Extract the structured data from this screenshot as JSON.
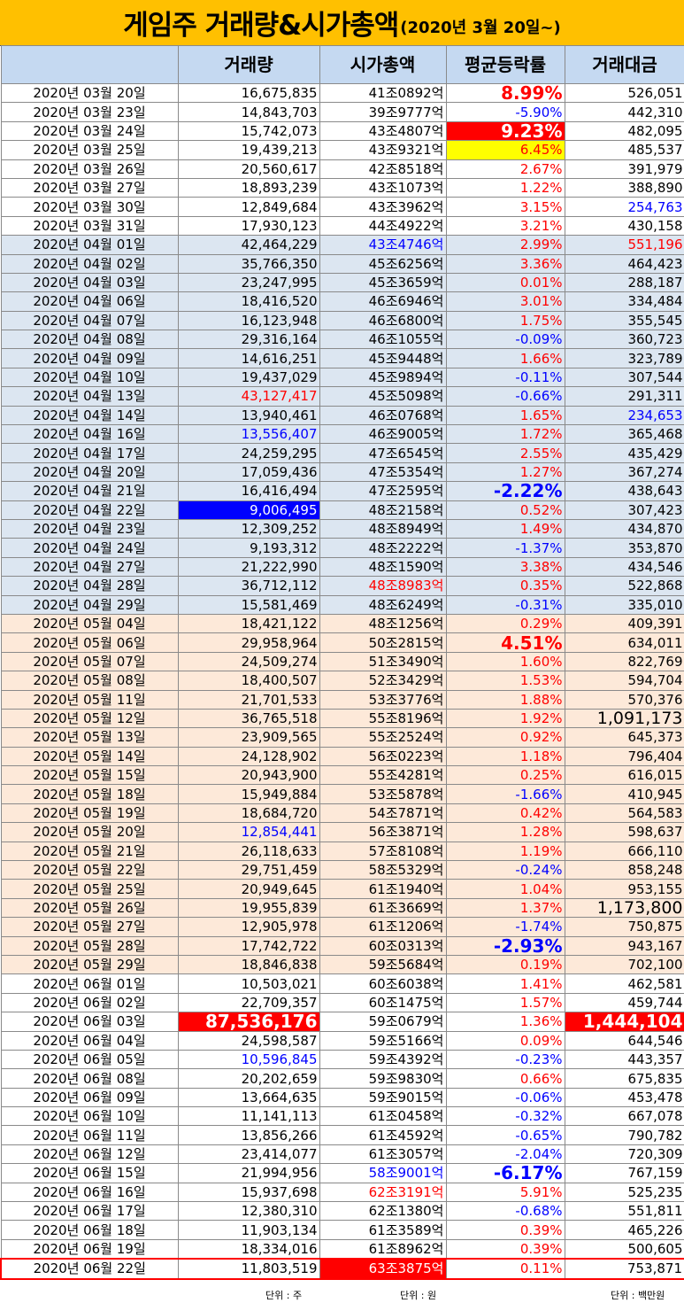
{
  "title": {
    "main": "게임주 거래량&시가총액",
    "sub": "(2020년 3월 20일~)"
  },
  "colors": {
    "title_bg": "#ffc000",
    "header_bg": "#c5d9f1",
    "march_bg": "#ffffff",
    "april_bg": "#dce6f1",
    "may_bg": "#fde9d9",
    "june_bg": "#ffffff",
    "highlight_red": "#ff0000",
    "highlight_blue": "#0000ff",
    "highlight_yellow": "#ffff00"
  },
  "headers": [
    "",
    "거래량",
    "시가총액",
    "평균등락률",
    "거래대금"
  ],
  "rows": [
    {
      "date": "2020년 03월 20일",
      "volume": "16,675,835",
      "market_cap": "41조0892억",
      "change": "8.99%",
      "amount": "526,051",
      "group": "white",
      "cs": [
        "",
        "",
        "",
        "pos big",
        ""
      ]
    },
    {
      "date": "2020년 03월 23일",
      "volume": "14,843,703",
      "market_cap": "39조9777억",
      "change": "-5.90%",
      "amount": "442,310",
      "group": "white",
      "cs": [
        "",
        "",
        "",
        "neg",
        ""
      ]
    },
    {
      "date": "2020년 03월 24일",
      "volume": "15,742,073",
      "market_cap": "43조4807억",
      "change": "9.23%",
      "amount": "482,095",
      "group": "white",
      "cs": [
        "",
        "",
        "",
        "bg-red big",
        ""
      ]
    },
    {
      "date": "2020년 03월 25일",
      "volume": "19,439,213",
      "market_cap": "43조9321억",
      "change": "6.45%",
      "amount": "485,537",
      "group": "white",
      "cs": [
        "",
        "",
        "",
        "pos bg-yellow",
        ""
      ]
    },
    {
      "date": "2020년 03월 26일",
      "volume": "20,560,617",
      "market_cap": "42조8518억",
      "change": "2.67%",
      "amount": "391,979",
      "group": "white",
      "cs": [
        "",
        "",
        "",
        "pos",
        ""
      ]
    },
    {
      "date": "2020년 03월 27일",
      "volume": "18,893,239",
      "market_cap": "43조1073억",
      "change": "1.22%",
      "amount": "388,890",
      "group": "white",
      "cs": [
        "",
        "",
        "",
        "pos",
        ""
      ]
    },
    {
      "date": "2020년 03월 30일",
      "volume": "12,849,684",
      "market_cap": "43조3962억",
      "change": "3.15%",
      "amount": "254,763",
      "group": "white",
      "cs": [
        "",
        "",
        "",
        "pos",
        "t-blue"
      ]
    },
    {
      "date": "2020년 03월 31일",
      "volume": "17,930,123",
      "market_cap": "44조4922억",
      "change": "3.21%",
      "amount": "430,158",
      "group": "white",
      "cs": [
        "",
        "",
        "",
        "pos",
        ""
      ]
    },
    {
      "date": "2020년 04월 01일",
      "volume": "42,464,229",
      "market_cap": "43조4746억",
      "change": "2.99%",
      "amount": "551,196",
      "group": "blue",
      "cs": [
        "",
        "",
        "t-blue",
        "pos",
        "t-red"
      ]
    },
    {
      "date": "2020년 04월 02일",
      "volume": "35,766,350",
      "market_cap": "45조6256억",
      "change": "3.36%",
      "amount": "464,423",
      "group": "blue",
      "cs": [
        "",
        "",
        "",
        "pos",
        ""
      ]
    },
    {
      "date": "2020년 04월 03일",
      "volume": "23,247,995",
      "market_cap": "45조3659억",
      "change": "0.01%",
      "amount": "288,187",
      "group": "blue",
      "cs": [
        "",
        "",
        "",
        "pos",
        ""
      ]
    },
    {
      "date": "2020년 04월 06일",
      "volume": "18,416,520",
      "market_cap": "46조6946억",
      "change": "3.01%",
      "amount": "334,484",
      "group": "blue",
      "cs": [
        "",
        "",
        "",
        "pos",
        ""
      ]
    },
    {
      "date": "2020년 04월 07일",
      "volume": "16,123,948",
      "market_cap": "46조6800억",
      "change": "1.75%",
      "amount": "355,545",
      "group": "blue",
      "cs": [
        "",
        "",
        "",
        "pos",
        ""
      ]
    },
    {
      "date": "2020년 04월 08일",
      "volume": "29,316,164",
      "market_cap": "46조1055억",
      "change": "-0.09%",
      "amount": "360,723",
      "group": "blue",
      "cs": [
        "",
        "",
        "",
        "neg",
        ""
      ]
    },
    {
      "date": "2020년 04월 09일",
      "volume": "14,616,251",
      "market_cap": "45조9448억",
      "change": "1.66%",
      "amount": "323,789",
      "group": "blue",
      "cs": [
        "",
        "",
        "",
        "pos",
        ""
      ]
    },
    {
      "date": "2020년 04월 10일",
      "volume": "19,437,029",
      "market_cap": "45조9894억",
      "change": "-0.11%",
      "amount": "307,544",
      "group": "blue",
      "cs": [
        "",
        "",
        "",
        "neg",
        ""
      ]
    },
    {
      "date": "2020년 04월 13일",
      "volume": "43,127,417",
      "market_cap": "45조5098억",
      "change": "-0.66%",
      "amount": "291,311",
      "group": "blue",
      "cs": [
        "",
        "t-red",
        "",
        "neg",
        ""
      ]
    },
    {
      "date": "2020년 04월 14일",
      "volume": "13,940,461",
      "market_cap": "46조0768억",
      "change": "1.65%",
      "amount": "234,653",
      "group": "blue",
      "cs": [
        "",
        "",
        "",
        "pos",
        "t-blue"
      ]
    },
    {
      "date": "2020년 04월 16일",
      "volume": "13,556,407",
      "market_cap": "46조9005억",
      "change": "1.72%",
      "amount": "365,468",
      "group": "blue",
      "cs": [
        "",
        "t-blue",
        "",
        "pos",
        ""
      ]
    },
    {
      "date": "2020년 04월 17일",
      "volume": "24,259,295",
      "market_cap": "47조6545억",
      "change": "2.55%",
      "amount": "435,429",
      "group": "blue",
      "cs": [
        "",
        "",
        "",
        "pos",
        ""
      ]
    },
    {
      "date": "2020년 04월 20일",
      "volume": "17,059,436",
      "market_cap": "47조5354억",
      "change": "1.27%",
      "amount": "367,274",
      "group": "blue",
      "cs": [
        "",
        "",
        "",
        "pos",
        ""
      ]
    },
    {
      "date": "2020년 04월 21일",
      "volume": "16,416,494",
      "market_cap": "47조2595억",
      "change": "-2.22%",
      "amount": "438,643",
      "group": "blue",
      "cs": [
        "",
        "",
        "",
        "neg big",
        ""
      ]
    },
    {
      "date": "2020년 04월 22일",
      "volume": "9,006,495",
      "market_cap": "48조2158억",
      "change": "0.52%",
      "amount": "307,423",
      "group": "blue",
      "cs": [
        "",
        "bg-blue",
        "",
        "pos",
        ""
      ]
    },
    {
      "date": "2020년 04월 23일",
      "volume": "12,309,252",
      "market_cap": "48조8949억",
      "change": "1.49%",
      "amount": "434,870",
      "group": "blue",
      "cs": [
        "",
        "",
        "",
        "pos",
        ""
      ]
    },
    {
      "date": "2020년 04월 24일",
      "volume": "9,193,312",
      "market_cap": "48조2222억",
      "change": "-1.37%",
      "amount": "353,870",
      "group": "blue",
      "cs": [
        "",
        "",
        "",
        "neg",
        ""
      ]
    },
    {
      "date": "2020년 04월 27일",
      "volume": "21,222,990",
      "market_cap": "48조1590억",
      "change": "3.38%",
      "amount": "434,546",
      "group": "blue",
      "cs": [
        "",
        "",
        "",
        "pos",
        ""
      ]
    },
    {
      "date": "2020년 04월 28일",
      "volume": "36,712,112",
      "market_cap": "48조8983억",
      "change": "0.35%",
      "amount": "522,868",
      "group": "blue",
      "cs": [
        "",
        "",
        "t-red",
        "pos",
        ""
      ]
    },
    {
      "date": "2020년 04월 29일",
      "volume": "15,581,469",
      "market_cap": "48조6249억",
      "change": "-0.31%",
      "amount": "335,010",
      "group": "blue",
      "cs": [
        "",
        "",
        "",
        "neg",
        ""
      ]
    },
    {
      "date": "2020년 05월 04일",
      "volume": "18,421,122",
      "market_cap": "48조1256억",
      "change": "0.29%",
      "amount": "409,391",
      "group": "peach",
      "cs": [
        "",
        "",
        "",
        "pos",
        ""
      ]
    },
    {
      "date": "2020년 05월 06일",
      "volume": "29,958,964",
      "market_cap": "50조2815억",
      "change": "4.51%",
      "amount": "634,011",
      "group": "peach",
      "cs": [
        "",
        "",
        "",
        "pos big",
        ""
      ]
    },
    {
      "date": "2020년 05월 07일",
      "volume": "24,509,274",
      "market_cap": "51조3490억",
      "change": "1.60%",
      "amount": "822,769",
      "group": "peach",
      "cs": [
        "",
        "",
        "",
        "pos",
        ""
      ]
    },
    {
      "date": "2020년 05월 08일",
      "volume": "18,400,507",
      "market_cap": "52조3429억",
      "change": "1.53%",
      "amount": "594,704",
      "group": "peach",
      "cs": [
        "",
        "",
        "",
        "pos",
        ""
      ]
    },
    {
      "date": "2020년 05월 11일",
      "volume": "21,701,533",
      "market_cap": "53조3776억",
      "change": "1.88%",
      "amount": "570,376",
      "group": "peach",
      "cs": [
        "",
        "",
        "",
        "pos",
        ""
      ]
    },
    {
      "date": "2020년 05월 12일",
      "volume": "36,765,518",
      "market_cap": "55조8196억",
      "change": "1.92%",
      "amount": "1,091,173",
      "group": "peach",
      "cs": [
        "",
        "",
        "",
        "pos",
        "big-black"
      ]
    },
    {
      "date": "2020년 05월 13일",
      "volume": "23,909,565",
      "market_cap": "55조2524억",
      "change": "0.92%",
      "amount": "645,373",
      "group": "peach",
      "cs": [
        "",
        "",
        "",
        "pos",
        ""
      ]
    },
    {
      "date": "2020년 05월 14일",
      "volume": "24,128,902",
      "market_cap": "56조0223억",
      "change": "1.18%",
      "amount": "796,404",
      "group": "peach",
      "cs": [
        "",
        "",
        "",
        "pos",
        ""
      ]
    },
    {
      "date": "2020년 05월 15일",
      "volume": "20,943,900",
      "market_cap": "55조4281억",
      "change": "0.25%",
      "amount": "616,015",
      "group": "peach",
      "cs": [
        "",
        "",
        "",
        "pos",
        ""
      ]
    },
    {
      "date": "2020년 05월 18일",
      "volume": "15,949,884",
      "market_cap": "53조5878억",
      "change": "-1.66%",
      "amount": "410,945",
      "group": "peach",
      "cs": [
        "",
        "",
        "",
        "neg",
        ""
      ]
    },
    {
      "date": "2020년 05월 19일",
      "volume": "18,684,720",
      "market_cap": "54조7871억",
      "change": "0.42%",
      "amount": "564,583",
      "group": "peach",
      "cs": [
        "",
        "",
        "",
        "pos",
        ""
      ]
    },
    {
      "date": "2020년 05월 20일",
      "volume": "12,854,441",
      "market_cap": "56조3871억",
      "change": "1.28%",
      "amount": "598,637",
      "group": "peach",
      "cs": [
        "",
        "t-blue",
        "",
        "pos",
        ""
      ]
    },
    {
      "date": "2020년 05월 21일",
      "volume": "26,118,633",
      "market_cap": "57조8108억",
      "change": "1.19%",
      "amount": "666,110",
      "group": "peach",
      "cs": [
        "",
        "",
        "",
        "pos",
        ""
      ]
    },
    {
      "date": "2020년 05월 22일",
      "volume": "29,751,459",
      "market_cap": "58조5329억",
      "change": "-0.24%",
      "amount": "858,248",
      "group": "peach",
      "cs": [
        "",
        "",
        "",
        "neg",
        ""
      ]
    },
    {
      "date": "2020년 05월 25일",
      "volume": "20,949,645",
      "market_cap": "61조1940억",
      "change": "1.04%",
      "amount": "953,155",
      "group": "peach",
      "cs": [
        "",
        "",
        "",
        "pos",
        ""
      ]
    },
    {
      "date": "2020년 05월 26일",
      "volume": "19,955,839",
      "market_cap": "61조3669억",
      "change": "1.37%",
      "amount": "1,173,800",
      "group": "peach",
      "cs": [
        "",
        "",
        "",
        "pos",
        "big-black"
      ]
    },
    {
      "date": "2020년 05월 27일",
      "volume": "12,905,978",
      "market_cap": "61조1206억",
      "change": "-1.74%",
      "amount": "750,875",
      "group": "peach",
      "cs": [
        "",
        "",
        "",
        "neg",
        ""
      ]
    },
    {
      "date": "2020년 05월 28일",
      "volume": "17,742,722",
      "market_cap": "60조0313억",
      "change": "-2.93%",
      "amount": "943,167",
      "group": "peach",
      "cs": [
        "",
        "",
        "",
        "neg big",
        ""
      ]
    },
    {
      "date": "2020년 05월 29일",
      "volume": "18,846,838",
      "market_cap": "59조5684억",
      "change": "0.19%",
      "amount": "702,100",
      "group": "peach",
      "cs": [
        "",
        "",
        "",
        "pos",
        ""
      ]
    },
    {
      "date": "2020년 06월 01일",
      "volume": "10,503,021",
      "market_cap": "60조6038억",
      "change": "1.41%",
      "amount": "462,581",
      "group": "white",
      "cs": [
        "",
        "",
        "",
        "pos",
        ""
      ]
    },
    {
      "date": "2020년 06월 02일",
      "volume": "22,709,357",
      "market_cap": "60조1475억",
      "change": "1.57%",
      "amount": "459,744",
      "group": "white",
      "cs": [
        "",
        "",
        "",
        "pos",
        ""
      ]
    },
    {
      "date": "2020년 06월 03일",
      "volume": "87,536,176",
      "market_cap": "59조0679억",
      "change": "1.36%",
      "amount": "1,444,104",
      "group": "white",
      "cs": [
        "",
        "bg-red big",
        "",
        "pos",
        "bg-red big"
      ]
    },
    {
      "date": "2020년 06월 04일",
      "volume": "24,598,587",
      "market_cap": "59조5166억",
      "change": "0.09%",
      "amount": "644,546",
      "group": "white",
      "cs": [
        "",
        "",
        "",
        "pos",
        ""
      ]
    },
    {
      "date": "2020년 06월 05일",
      "volume": "10,596,845",
      "market_cap": "59조4392억",
      "change": "-0.23%",
      "amount": "443,357",
      "group": "white",
      "cs": [
        "",
        "t-blue",
        "",
        "neg",
        ""
      ]
    },
    {
      "date": "2020년 06월 08일",
      "volume": "20,202,659",
      "market_cap": "59조9830억",
      "change": "0.66%",
      "amount": "675,835",
      "group": "white",
      "cs": [
        "",
        "",
        "",
        "pos",
        ""
      ]
    },
    {
      "date": "2020년 06월 09일",
      "volume": "13,664,635",
      "market_cap": "59조9015억",
      "change": "-0.06%",
      "amount": "453,478",
      "group": "white",
      "cs": [
        "",
        "",
        "",
        "neg",
        ""
      ]
    },
    {
      "date": "2020년 06월 10일",
      "volume": "11,141,113",
      "market_cap": "61조0458억",
      "change": "-0.32%",
      "amount": "667,078",
      "group": "white",
      "cs": [
        "",
        "",
        "",
        "neg",
        ""
      ]
    },
    {
      "date": "2020년 06월 11일",
      "volume": "13,856,266",
      "market_cap": "61조4592억",
      "change": "-0.65%",
      "amount": "790,782",
      "group": "white",
      "cs": [
        "",
        "",
        "",
        "neg",
        ""
      ]
    },
    {
      "date": "2020년 06월 12일",
      "volume": "23,414,077",
      "market_cap": "61조3057억",
      "change": "-2.04%",
      "amount": "720,309",
      "group": "white",
      "cs": [
        "",
        "",
        "",
        "neg",
        ""
      ]
    },
    {
      "date": "2020년 06월 15일",
      "volume": "21,994,956",
      "market_cap": "58조9001억",
      "change": "-6.17%",
      "amount": "767,159",
      "group": "white",
      "cs": [
        "",
        "",
        "t-blue",
        "neg big",
        ""
      ]
    },
    {
      "date": "2020년 06월 16일",
      "volume": "15,937,698",
      "market_cap": "62조3191억",
      "change": "5.91%",
      "amount": "525,235",
      "group": "white",
      "cs": [
        "",
        "",
        "t-red",
        "pos",
        ""
      ]
    },
    {
      "date": "2020년 06월 17일",
      "volume": "12,380,310",
      "market_cap": "62조1380억",
      "change": "-0.68%",
      "amount": "551,811",
      "group": "white",
      "cs": [
        "",
        "",
        "",
        "neg",
        ""
      ]
    },
    {
      "date": "2020년 06월 18일",
      "volume": "11,903,134",
      "market_cap": "61조3589억",
      "change": "0.39%",
      "amount": "465,226",
      "group": "white",
      "cs": [
        "",
        "",
        "",
        "pos",
        ""
      ]
    },
    {
      "date": "2020년 06월 19일",
      "volume": "18,334,016",
      "market_cap": "61조8962억",
      "change": "0.39%",
      "amount": "500,605",
      "group": "white",
      "cs": [
        "",
        "",
        "",
        "pos",
        ""
      ]
    },
    {
      "date": "2020년 06월 22일",
      "volume": "11,803,519",
      "market_cap": "63조3875억",
      "change": "0.11%",
      "amount": "753,871",
      "group": "white",
      "cs": [
        "",
        "",
        "bg-red",
        "pos",
        ""
      ],
      "last": true
    }
  ],
  "units": {
    "volume": "단위 : 주",
    "market_cap": "단위 : 원",
    "amount": "단위 : 백만원"
  }
}
